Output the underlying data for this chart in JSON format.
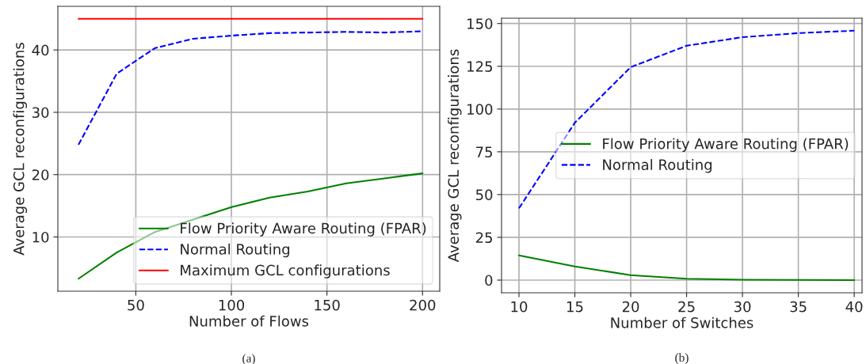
{
  "chart_data": [
    {
      "type": "line",
      "xlabel": "Number of Flows",
      "ylabel": "Average GCL reconfigurations",
      "annotations": [
        "(a)"
      ],
      "x": [
        20,
        40,
        60,
        80,
        100,
        120,
        140,
        160,
        180,
        200
      ],
      "series": [
        {
          "name": "Flow Priority Aware Routing (FPAR)",
          "color": "#008000",
          "line_style": "solid",
          "values": [
            3.3,
            7.5,
            10.8,
            12.8,
            14.8,
            16.3,
            17.3,
            18.6,
            19.4,
            20.2
          ]
        },
        {
          "name": "Normal Routing",
          "color": "#0000ff",
          "line_style": "dashed",
          "values": [
            24.8,
            36.2,
            40.3,
            41.8,
            42.3,
            42.7,
            42.8,
            42.9,
            42.8,
            43.0
          ]
        },
        {
          "name": "Maximum GCL configurations",
          "color": "#ff0000",
          "line_style": "solid",
          "values": [
            45,
            45,
            45,
            45,
            45,
            45,
            45,
            45,
            45,
            45
          ]
        }
      ],
      "xlim": [
        9.2,
        209
      ],
      "ylim": [
        1.3,
        47
      ],
      "xticks": [
        50,
        100,
        150,
        200
      ],
      "yticks": [
        10,
        20,
        30,
        40
      ],
      "grid": true,
      "legend": "bottom right"
    },
    {
      "type": "line",
      "xlabel": "Number of Switches",
      "ylabel": "Average GCL reconfigurations",
      "annotations": [
        "(b)"
      ],
      "x": [
        10,
        15,
        20,
        25,
        30,
        35,
        40
      ],
      "series": [
        {
          "name": "Flow Priority Aware Routing (FPAR)",
          "color": "#008000",
          "line_style": "solid",
          "values": [
            14.5,
            8,
            2.9,
            0.8,
            0.2,
            0.1,
            0
          ]
        },
        {
          "name": "Normal Routing",
          "color": "#0000ff",
          "line_style": "dashed",
          "values": [
            42,
            92,
            124.5,
            137,
            142,
            144.4,
            145.8
          ]
        }
      ],
      "xlim": [
        8.44,
        40.7
      ],
      "ylim": [
        -7.4,
        153.1
      ],
      "xticks": [
        10,
        15,
        20,
        25,
        30,
        35,
        40
      ],
      "yticks": [
        0,
        25,
        50,
        75,
        100,
        125,
        150
      ],
      "grid": true,
      "legend": "center right"
    }
  ]
}
